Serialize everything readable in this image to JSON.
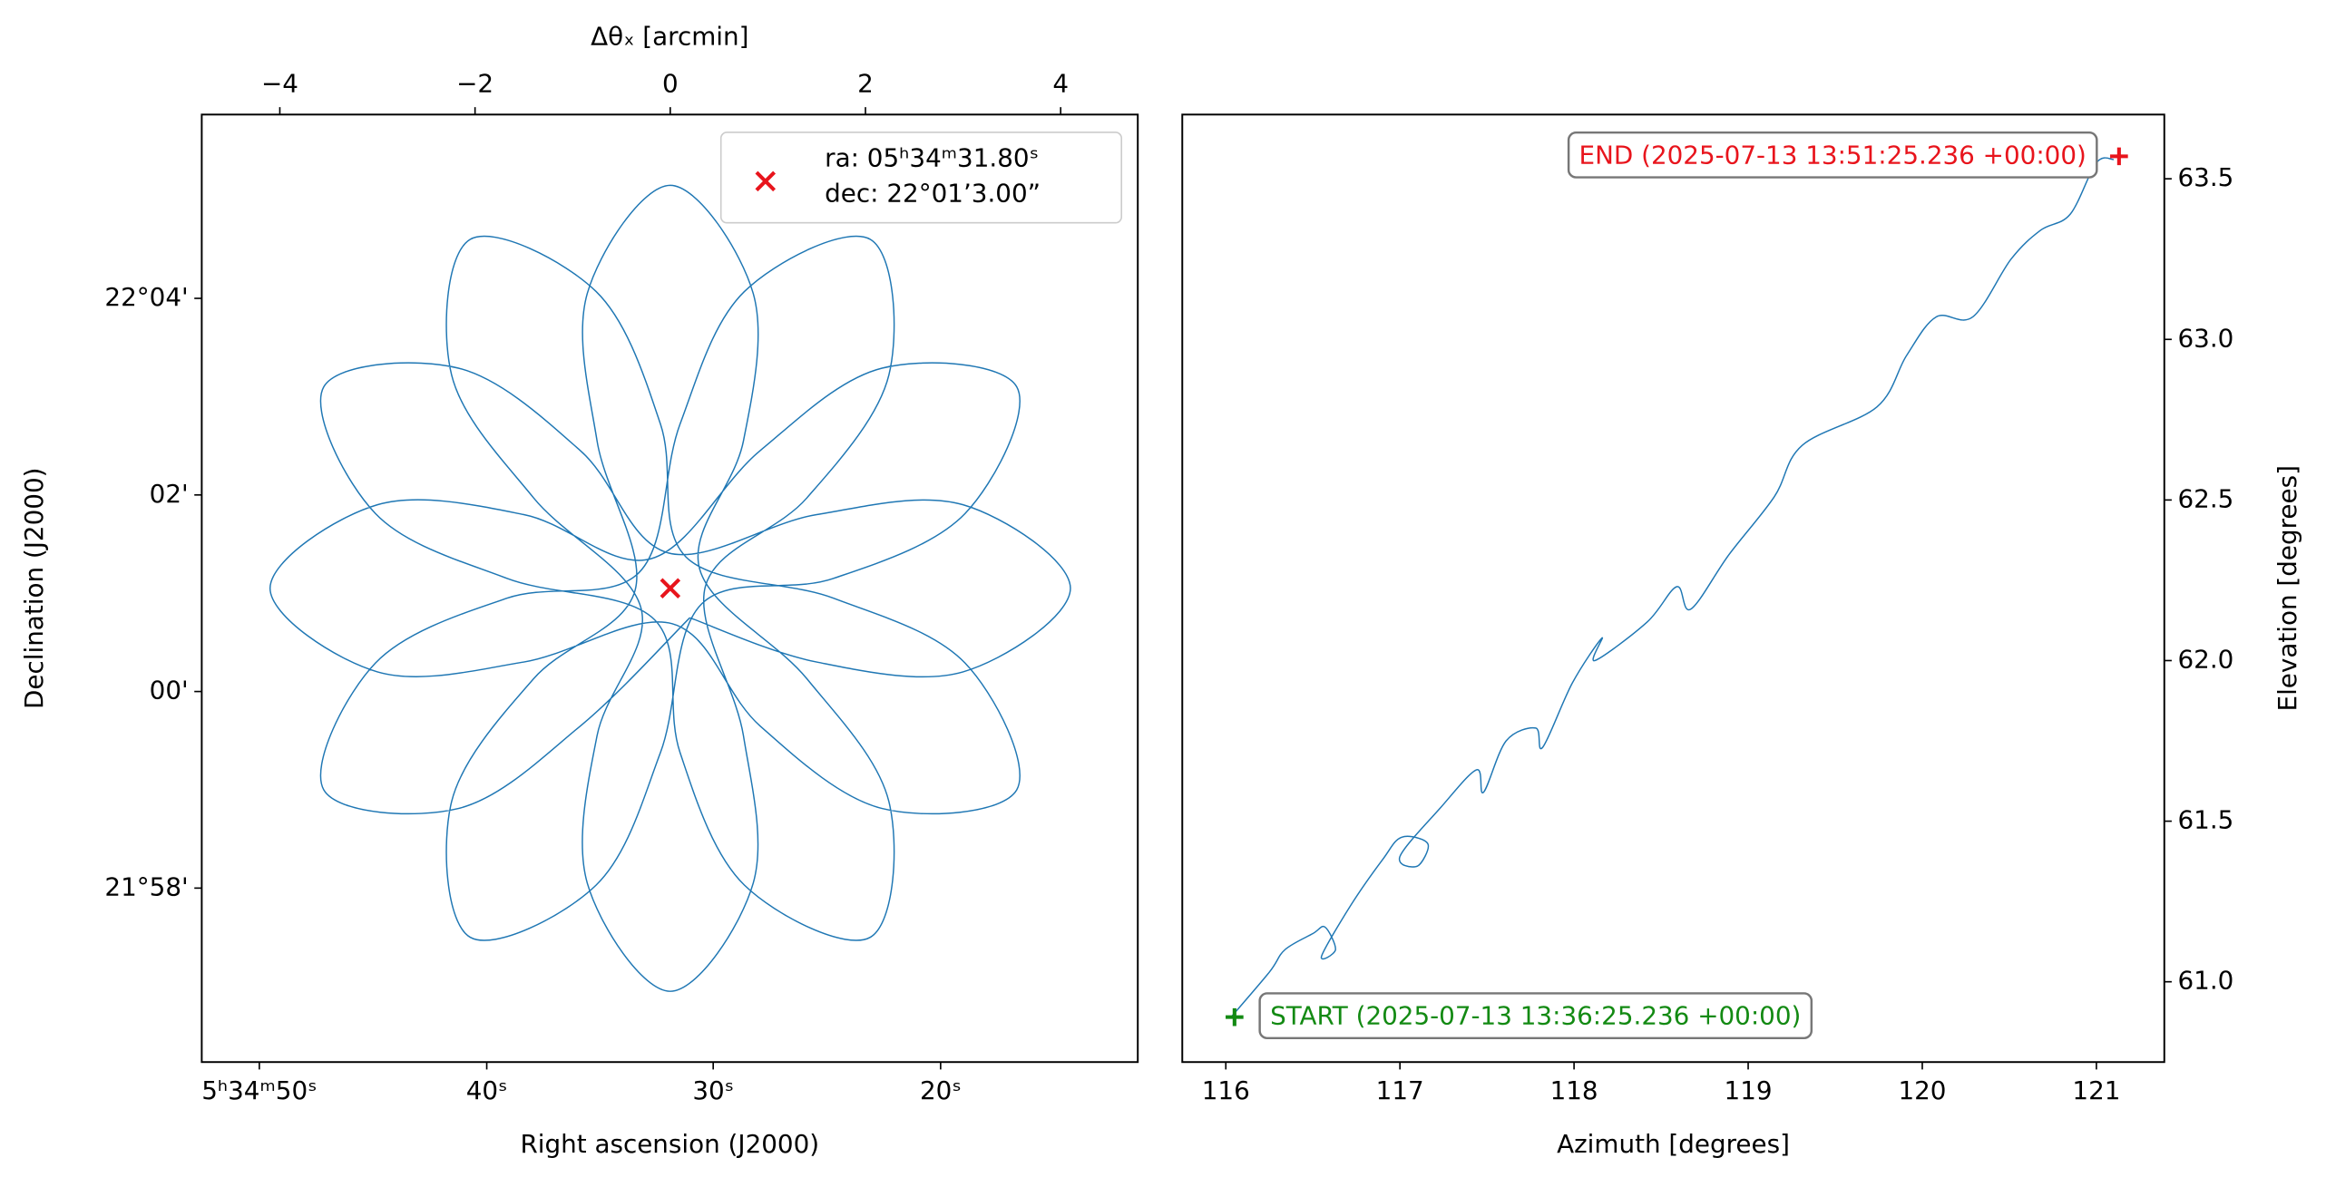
{
  "chart_data": [
    {
      "type": "line",
      "xlabel": "Right ascension (J2000)",
      "ylabel": "Declination (J2000)",
      "x2label": "Δθₓ [arcmin]",
      "xlim": [
        -4.8,
        4.79
      ],
      "ylim": [
        -3.77,
        5.87
      ],
      "xticks": [
        {
          "value": -4.21,
          "label": "5ʰ34ᵐ50ˢ"
        },
        {
          "value": -1.88,
          "label": "40ˢ"
        },
        {
          "value": 0.44,
          "label": "30ˢ"
        },
        {
          "value": 2.77,
          "label": "20ˢ"
        }
      ],
      "x2ticks": [
        {
          "value": -4,
          "label": "−4"
        },
        {
          "value": -2,
          "label": "−2"
        },
        0,
        2,
        4
      ],
      "yticks": [
        {
          "value": 4,
          "label": "22°04'"
        },
        {
          "value": 2,
          "label": "02'"
        },
        {
          "value": 0,
          "label": "00'"
        },
        {
          "value": -2,
          "label": "21°58'"
        }
      ],
      "yaxis": "left",
      "series": [
        {
          "color": "#1f77b4",
          "x": [
            0.2,
            1.5,
            3,
            4.1,
            3,
            1.5,
            -0.02,
            -0.92,
            -2.17,
            -3.55,
            -3.02,
            -1.67,
            -0.16,
            0.1,
            0.76,
            2.05,
            2.24,
            1.4,
            0.3,
            0.75,
            0.85,
            0,
            -0.85,
            -0.75,
            -0.36,
            -1.4,
            -2.24,
            -2.05,
            -0.76,
            -0.1,
            0.32,
            1.67,
            3.02,
            3.55,
            2.17,
            0.92,
            -0.2,
            -1.5,
            -3,
            -4.1,
            -3,
            -1.5,
            0.02,
            0.92,
            2.17,
            3.55,
            3.02,
            1.67,
            0.16,
            -0.1,
            -0.76,
            -2.05,
            -2.24,
            -1.4,
            -0.3,
            -0.75,
            -0.85,
            0,
            0.85,
            0.75,
            0.36,
            1.4,
            2.24,
            2.05,
            0.76,
            0.1,
            -0.32,
            -1.67,
            -3.02,
            -3.55,
            -2.17,
            -0.92,
            0.2
          ],
          "values": [
            0.75,
            0.3,
            0.2,
            1.05,
            1.9,
            1.8,
            1.41,
            2.45,
            3.29,
            3.1,
            1.81,
            1.15,
            0.73,
            -0.62,
            -1.97,
            -2.5,
            -1.12,
            0.13,
            1.25,
            2.55,
            4.05,
            5.15,
            4.05,
            2.55,
            1.03,
            0.13,
            -1.12,
            -2.5,
            -1.97,
            -0.62,
            0.89,
            1.15,
            1.81,
            3.1,
            3.29,
            2.45,
            1.35,
            1.8,
            1.9,
            1.05,
            0.2,
            0.3,
            0.69,
            -0.35,
            -1.19,
            -1,
            0.29,
            0.95,
            1.37,
            2.72,
            4.07,
            4.6,
            3.22,
            1.97,
            0.85,
            -0.45,
            -1.95,
            -3.05,
            -1.95,
            -0.45,
            1.07,
            1.97,
            3.22,
            4.6,
            4.07,
            2.72,
            1.21,
            0.95,
            0.29,
            -1,
            -1.19,
            -0.35,
            0.75
          ]
        }
      ],
      "points": [
        {
          "x": 0,
          "y": 1.05,
          "color": "#e8141c",
          "marker": "x",
          "label": [
            "ra:  05ʰ34ᵐ31.80ˢ",
            "dec: 22°01’3.00”"
          ]
        }
      ]
    },
    {
      "type": "line",
      "xlabel": "Azimuth [degrees]",
      "ylabel": "Elevation [degrees]",
      "xlim": [
        115.75,
        121.39
      ],
      "ylim": [
        60.75,
        63.7
      ],
      "xticks": [
        116,
        117,
        118,
        119,
        120,
        121
      ],
      "yticks": [
        {
          "value": 61,
          "label": "61.0"
        },
        61.5,
        {
          "value": 62,
          "label": "62.0"
        },
        62.5,
        {
          "value": 63,
          "label": "63.0"
        },
        63.5
      ],
      "yaxis": "right",
      "series": [
        {
          "color": "#1f77b4",
          "x": [
            116.03,
            116.25,
            116.34,
            116.5,
            116.57,
            116.63,
            116.55,
            116.72,
            116.9,
            117.01,
            117.16,
            117.1,
            117.0,
            117.23,
            117.44,
            117.48,
            117.61,
            117.78,
            117.82,
            117.99,
            118.16,
            118.12,
            118.42,
            118.59,
            118.67,
            118.89,
            119.15,
            119.31,
            119.74,
            119.91,
            120.08,
            120.29,
            120.51,
            120.68,
            120.85,
            121.0,
            121.1
          ],
          "values": [
            60.89,
            61.03,
            61.1,
            61.15,
            61.17,
            61.1,
            61.08,
            61.24,
            61.38,
            61.45,
            61.43,
            61.36,
            61.39,
            61.54,
            61.66,
            61.59,
            61.75,
            61.79,
            61.73,
            61.93,
            62.07,
            62.0,
            62.12,
            62.23,
            62.16,
            62.33,
            62.51,
            62.67,
            62.79,
            62.95,
            63.07,
            63.07,
            63.25,
            63.34,
            63.39,
            63.55,
            63.56
          ]
        }
      ],
      "annotations": [
        {
          "text": "START (2025-07-13 13:36:25.236 +00:00)",
          "x": 116.05,
          "y": 60.89,
          "color": "#138a13"
        },
        {
          "text": "END (2025-07-13 13:51:25.236 +00:00)",
          "x": 121.13,
          "y": 63.57,
          "color": "#e8141c"
        }
      ]
    }
  ]
}
